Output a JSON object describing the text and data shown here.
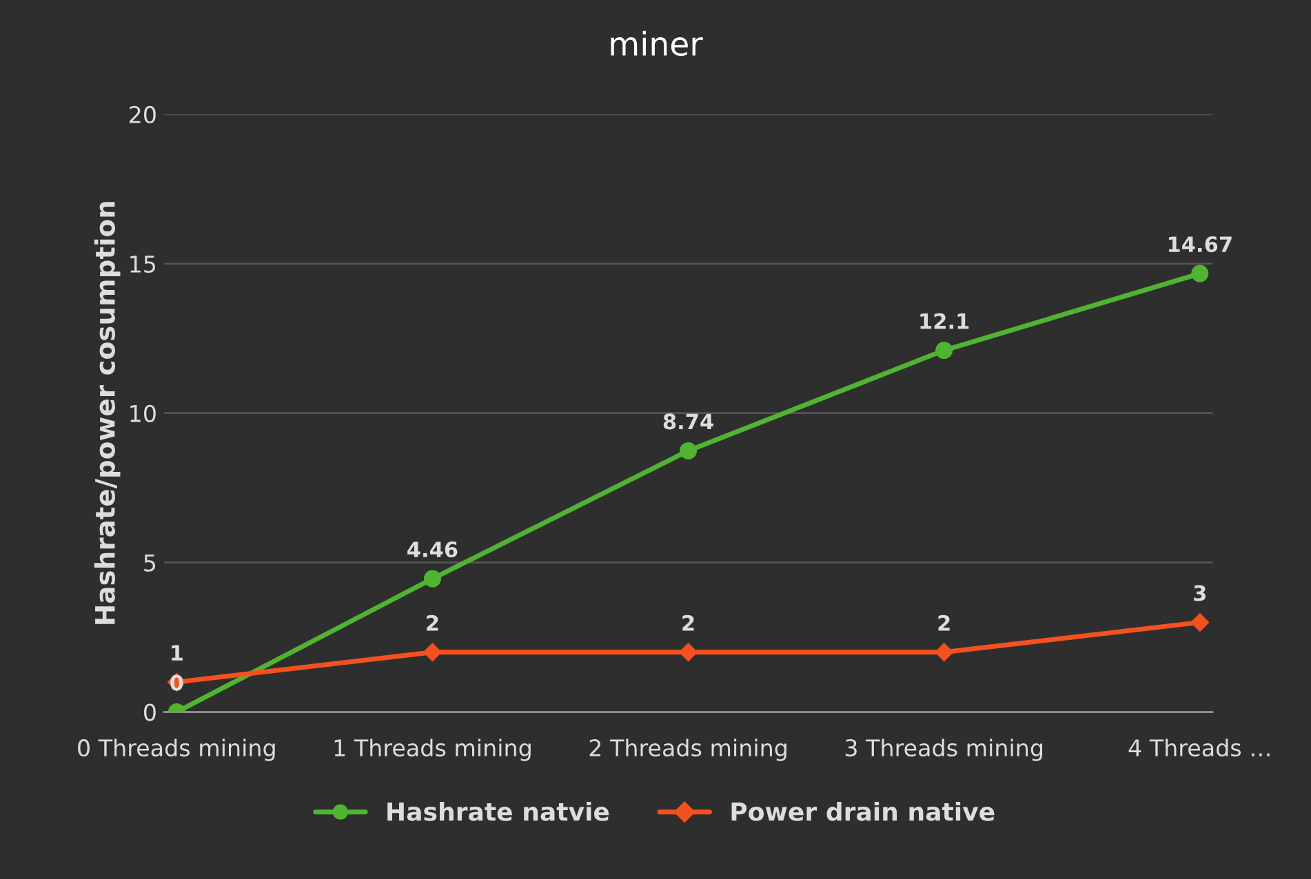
{
  "chart_data": {
    "type": "line",
    "title": "miner",
    "ylabel": "Hashrate/power cosumption",
    "categories": [
      "0 Threads mining",
      "1 Threads mining",
      "2 Threads mining",
      "3 Threads mining",
      "4 Threads …"
    ],
    "series": [
      {
        "name": "Hashrate natvie",
        "color": "#50b432",
        "marker": "circle",
        "values": [
          0,
          4.46,
          8.74,
          12.1,
          14.67
        ]
      },
      {
        "name": "Power drain native",
        "color": "#f4511e",
        "marker": "diamond",
        "values": [
          1,
          2,
          2,
          2,
          3
        ]
      }
    ],
    "ylim": [
      0,
      20
    ],
    "yticks": [
      0,
      5,
      10,
      15,
      20
    ],
    "grid": "y",
    "legend": "bottom",
    "data_labels": true,
    "line_style": "solid"
  }
}
